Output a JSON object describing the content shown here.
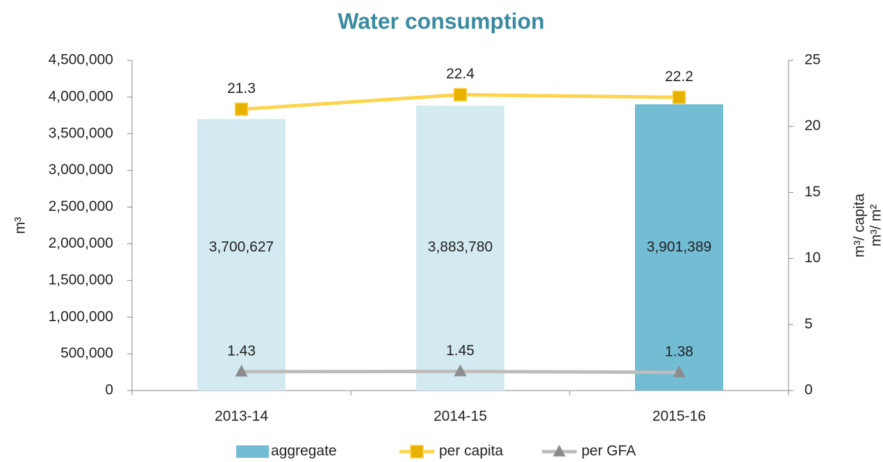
{
  "chart_data": {
    "type": "bar_line",
    "title": "Water consumption",
    "ylabel": "m³",
    "y2label": [
      "m³/ capita",
      "m³/ m²"
    ],
    "categories": [
      "2013-14",
      "2014-15",
      "2015-16"
    ],
    "ylim": [
      0,
      4500000
    ],
    "yticks": [
      0,
      {
        "value": 500000,
        "label": "500,000"
      },
      {
        "value": 1000000,
        "label": "1,000,000"
      },
      {
        "value": 1500000,
        "label": "1,500,000"
      },
      {
        "value": 2000000,
        "label": "2,000,000"
      },
      {
        "value": 2500000,
        "label": "2,500,000"
      },
      {
        "value": 3000000,
        "label": "3,000,000"
      },
      {
        "value": 3500000,
        "label": "3,500,000"
      },
      {
        "value": 4000000,
        "label": "4,000,000"
      },
      {
        "value": 4500000,
        "label": "4,500,000"
      }
    ],
    "y2lim": [
      0,
      25
    ],
    "y2ticks": [
      0,
      5,
      10,
      15,
      20,
      25
    ],
    "series": [
      {
        "name": "aggregate",
        "kind": "bar",
        "color": "#72bcd4",
        "colors": [
          "#d3eaf0",
          "#d3eaf0",
          "#72bcd4"
        ],
        "values": [
          3700627,
          3883780,
          3901389
        ],
        "value_labels": [
          "3,700,627",
          "3,883,780",
          "3,901,389"
        ]
      },
      {
        "name": "per capita",
        "kind": "line",
        "axis": "y2",
        "color": "#fdd44b",
        "marker": "square",
        "marker_color": "#e8b100",
        "values": [
          21.3,
          22.4,
          22.2
        ]
      },
      {
        "name": "per GFA",
        "kind": "line",
        "axis": "y2",
        "color": "#bdbdbd",
        "marker": "triangle",
        "marker_color": "#8c8c8c",
        "values": [
          1.43,
          1.45,
          1.38
        ]
      }
    ]
  }
}
